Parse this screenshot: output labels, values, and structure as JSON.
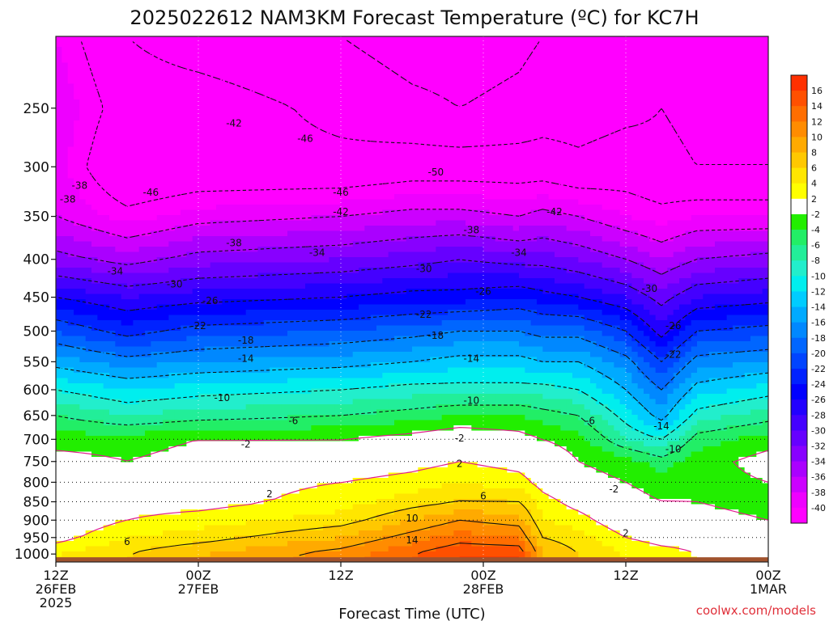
{
  "chart_data": {
    "type": "heatmap",
    "title": "2025022612 NAM3KM Forecast Temperature (ºC) for KC7H",
    "xlabel": "Forecast Time (UTC)",
    "ylabel": "",
    "credit": "coolwx.com/models",
    "x_ticks": [
      {
        "hour": 0,
        "lines": [
          "12Z",
          "26FEB",
          "2025"
        ]
      },
      {
        "hour": 12,
        "lines": [
          "00Z",
          "27FEB"
        ]
      },
      {
        "hour": 24,
        "lines": [
          "12Z"
        ]
      },
      {
        "hour": 36,
        "lines": [
          "00Z",
          "28FEB"
        ]
      },
      {
        "hour": 48,
        "lines": [
          "12Z"
        ]
      },
      {
        "hour": 60,
        "lines": [
          "00Z",
          "1MAR"
        ]
      }
    ],
    "xlim_hours": [
      0,
      60
    ],
    "y_ticks_hpa": [
      250,
      300,
      350,
      400,
      450,
      500,
      550,
      600,
      650,
      700,
      750,
      800,
      850,
      900,
      950,
      1000
    ],
    "ylim_hpa": [
      1025,
      200
    ],
    "y_scale": "log-pressure",
    "gridlines": [
      700,
      750,
      800,
      850,
      900,
      950
    ],
    "colorbar": {
      "labels": [
        "16",
        "14",
        "12",
        "10",
        "8",
        "6",
        "4",
        "2",
        "-2",
        "-4",
        "-6",
        "-8",
        "-10",
        "-12",
        "-14",
        "-16",
        "-18",
        "-20",
        "-22",
        "-24",
        "-26",
        "-28",
        "-30",
        "-32",
        "-34",
        "-36",
        "-38",
        "-40"
      ],
      "colors": [
        "#ff3000",
        "#ff5000",
        "#ff6e00",
        "#ff8c00",
        "#ffaa00",
        "#ffc800",
        "#ffe600",
        "#ffff00",
        "#ffffff",
        "#22ee00",
        "#22ee66",
        "#22ee99",
        "#22eecc",
        "#00eeee",
        "#00ccff",
        "#00aaff",
        "#0088ff",
        "#0066ff",
        "#0044ff",
        "#0022ff",
        "#0000ff",
        "#2200ff",
        "#4400ff",
        "#6600ff",
        "#8800ff",
        "#aa00ff",
        "#cc00ff",
        "#ee00ff",
        "#ff00ff"
      ]
    },
    "temperature_profile": {
      "pressure_hpa": [
        1000,
        950,
        900,
        850,
        800,
        750,
        700,
        650,
        600,
        550,
        500,
        450,
        400,
        350,
        300,
        250,
        200
      ],
      "columns": [
        {
          "hour": 0,
          "temps": [
            4,
            1,
            0,
            -1,
            -1,
            -1,
            -3,
            -6,
            -10,
            -15,
            -20,
            -26,
            -33,
            -38,
            -39,
            -38,
            -40
          ]
        },
        {
          "hour": 6,
          "temps": [
            6,
            4,
            2,
            1,
            0,
            -2,
            -3,
            -8,
            -12,
            -17,
            -23,
            -28,
            -35,
            -41,
            -46,
            -44,
            -46
          ]
        },
        {
          "hour": 12,
          "temps": [
            8,
            5,
            3,
            1,
            1,
            -1,
            -2,
            -7,
            -11,
            -16,
            -21,
            -27,
            -33,
            -39,
            -45,
            -44,
            -48
          ]
        },
        {
          "hour": 24,
          "temps": [
            11,
            8,
            5,
            3,
            2,
            0,
            -2,
            -6,
            -10,
            -15,
            -20,
            -26,
            -32,
            -38,
            -45,
            -47,
            -50
          ]
        },
        {
          "hour": 30,
          "temps": [
            14,
            11,
            8,
            5,
            3,
            1,
            -1,
            -5,
            -9,
            -14,
            -19,
            -25,
            -31,
            -37,
            -44,
            -49,
            -52
          ]
        },
        {
          "hour": 34,
          "temps": [
            16,
            13,
            10,
            6,
            4,
            2,
            0,
            -4,
            -9,
            -13,
            -18,
            -25,
            -30,
            -37,
            -44,
            -50,
            -52
          ]
        },
        {
          "hour": 39,
          "temps": [
            16,
            12,
            9,
            6,
            3,
            1,
            -1,
            -4,
            -9,
            -13,
            -18,
            -24,
            -31,
            -38,
            -44,
            -49,
            -51
          ]
        },
        {
          "hour": 41,
          "temps": [
            8,
            6,
            4,
            3,
            1,
            0,
            -2,
            -5,
            -9,
            -14,
            -19,
            -25,
            -31,
            -37,
            -44,
            -48,
            -50
          ]
        },
        {
          "hour": 44,
          "temps": [
            6,
            5,
            3,
            1,
            -1,
            -2,
            -3,
            -6,
            -10,
            -14,
            -19,
            -26,
            -32,
            -38,
            -45,
            -48,
            -50
          ]
        },
        {
          "hour": 48,
          "temps": [
            4,
            2,
            0,
            -1,
            -2,
            -3,
            -8,
            -11,
            -14,
            -17,
            -22,
            -28,
            -34,
            -40,
            -44,
            -47,
            -49
          ]
        },
        {
          "hour": 51,
          "temps": [
            3,
            1,
            0,
            -2,
            -3,
            -5,
            -10,
            -15,
            -18,
            -22,
            -27,
            -31,
            -36,
            -41,
            -45,
            -46,
            -48
          ]
        },
        {
          "hour": 54,
          "temps": [
            2,
            1,
            -1,
            -2,
            -3,
            -3,
            -5,
            -9,
            -13,
            -17,
            -22,
            -28,
            -34,
            -40,
            -46,
            -47,
            -49
          ]
        },
        {
          "hour": 60,
          "temps": [
            1,
            0,
            -2,
            -3,
            -2,
            -1,
            -3,
            -7,
            -11,
            -16,
            -21,
            -27,
            -33,
            -40,
            -46,
            -47,
            -49
          ]
        }
      ]
    },
    "contour_levels": [
      -50,
      -46,
      -42,
      -38,
      -34,
      -30,
      -26,
      -22,
      -18,
      -14,
      -10,
      -6,
      -2,
      2,
      6,
      10,
      14
    ],
    "contour_labels": [
      {
        "text": "-42",
        "hour": 15,
        "hpa": 262
      },
      {
        "text": "-46",
        "hour": 21,
        "hpa": 275
      },
      {
        "text": "-50",
        "hour": 32,
        "hpa": 305
      },
      {
        "text": "-38",
        "hour": 2,
        "hpa": 318
      },
      {
        "text": "-38",
        "hour": 1,
        "hpa": 332
      },
      {
        "text": "-46",
        "hour": 8,
        "hpa": 325
      },
      {
        "text": "-46",
        "hour": 24,
        "hpa": 325
      },
      {
        "text": "-42",
        "hour": 24,
        "hpa": 345
      },
      {
        "text": "-42",
        "hour": 42,
        "hpa": 345
      },
      {
        "text": "-38",
        "hour": 15,
        "hpa": 380
      },
      {
        "text": "-38",
        "hour": 35,
        "hpa": 365
      },
      {
        "text": "-34",
        "hour": 22,
        "hpa": 392
      },
      {
        "text": "-34",
        "hour": 39,
        "hpa": 392
      },
      {
        "text": "-34",
        "hour": 5,
        "hpa": 415
      },
      {
        "text": "-30",
        "hour": 10,
        "hpa": 432
      },
      {
        "text": "-30",
        "hour": 31,
        "hpa": 412
      },
      {
        "text": "-30",
        "hour": 50,
        "hpa": 438
      },
      {
        "text": "-26",
        "hour": 13,
        "hpa": 455
      },
      {
        "text": "-26",
        "hour": 36,
        "hpa": 442
      },
      {
        "text": "-26",
        "hour": 52,
        "hpa": 492
      },
      {
        "text": "-22",
        "hour": 12,
        "hpa": 492
      },
      {
        "text": "-22",
        "hour": 31,
        "hpa": 475
      },
      {
        "text": "-22",
        "hour": 52,
        "hpa": 538
      },
      {
        "text": "-18",
        "hour": 16,
        "hpa": 515
      },
      {
        "text": "-18",
        "hour": 32,
        "hpa": 507
      },
      {
        "text": "-14",
        "hour": 16,
        "hpa": 545
      },
      {
        "text": "-14",
        "hour": 35,
        "hpa": 545
      },
      {
        "text": "-14",
        "hour": 51,
        "hpa": 672
      },
      {
        "text": "-10",
        "hour": 14,
        "hpa": 615
      },
      {
        "text": "-10",
        "hour": 35,
        "hpa": 621
      },
      {
        "text": "-10",
        "hour": 52,
        "hpa": 722
      },
      {
        "text": "-6",
        "hour": 20,
        "hpa": 661
      },
      {
        "text": "-6",
        "hour": 45,
        "hpa": 661
      },
      {
        "text": "-2",
        "hour": 16,
        "hpa": 711
      },
      {
        "text": "-2",
        "hour": 34,
        "hpa": 698
      },
      {
        "text": "-2",
        "hour": 47,
        "hpa": 817
      },
      {
        "text": "2",
        "hour": 34,
        "hpa": 755
      },
      {
        "text": "2",
        "hour": 18,
        "hpa": 830
      },
      {
        "text": "2",
        "hour": 48,
        "hpa": 938
      },
      {
        "text": "6",
        "hour": 36,
        "hpa": 835
      },
      {
        "text": "6",
        "hour": 6,
        "hpa": 962
      },
      {
        "text": "10",
        "hour": 30,
        "hpa": 895
      },
      {
        "text": "14",
        "hour": 30,
        "hpa": 958
      }
    ]
  }
}
